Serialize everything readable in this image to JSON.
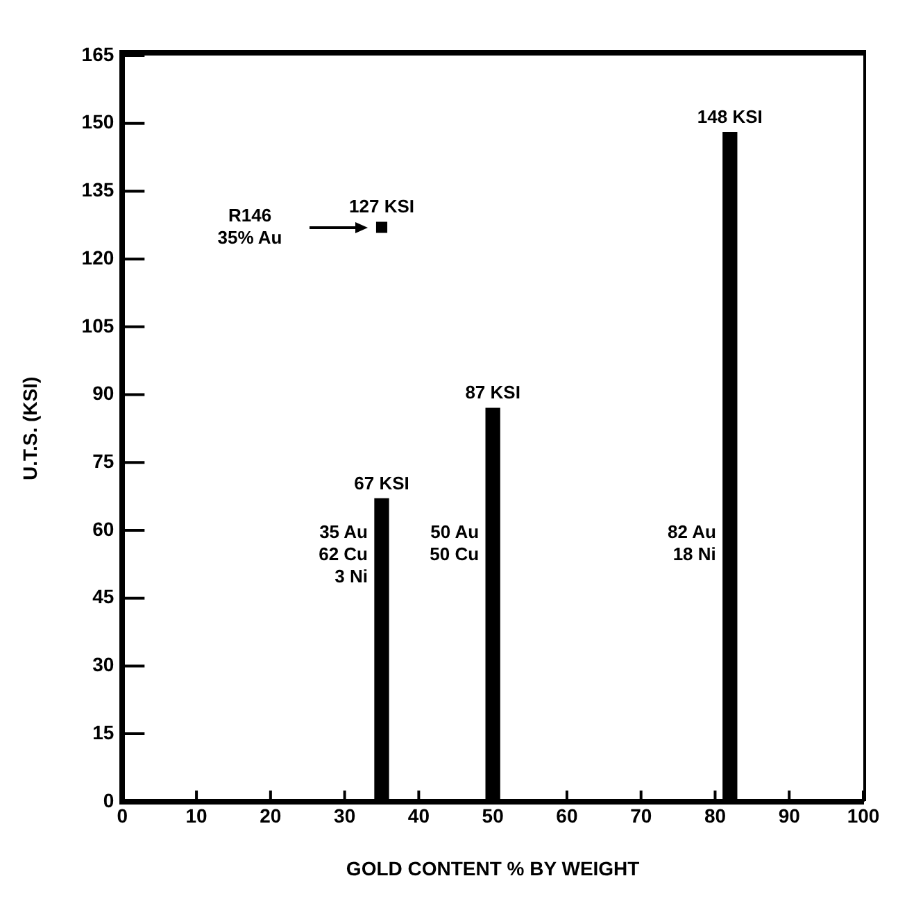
{
  "chart_data": {
    "type": "bar",
    "xlabel": "GOLD CONTENT % BY WEIGHT",
    "ylabel": "U.T.S. (KSI)",
    "xlim": [
      0,
      100
    ],
    "xticks": [
      0,
      10,
      20,
      30,
      40,
      50,
      60,
      70,
      80,
      90,
      100
    ],
    "ylim": [
      0,
      165
    ],
    "yticks": [
      0,
      15,
      30,
      45,
      60,
      75,
      90,
      105,
      120,
      135,
      150,
      165
    ],
    "series": [
      {
        "color": "#000000",
        "x": [
          35,
          50,
          82
        ],
        "values": [
          67,
          87,
          148
        ],
        "value_labels": [
          "67 KSI",
          "87 KSI",
          "148 KSI"
        ]
      },
      {
        "type": "scatter",
        "color": "#000000",
        "marker": "square",
        "x": [
          35
        ],
        "values": [
          127
        ],
        "value_labels": [
          "127 KSI"
        ]
      }
    ],
    "annotations": [
      "35 Au\n62 Cu\n3 Ni",
      "50 Au\n50 Cu",
      "82 Au\n18 Ni",
      "R146\n35% Au"
    ]
  }
}
